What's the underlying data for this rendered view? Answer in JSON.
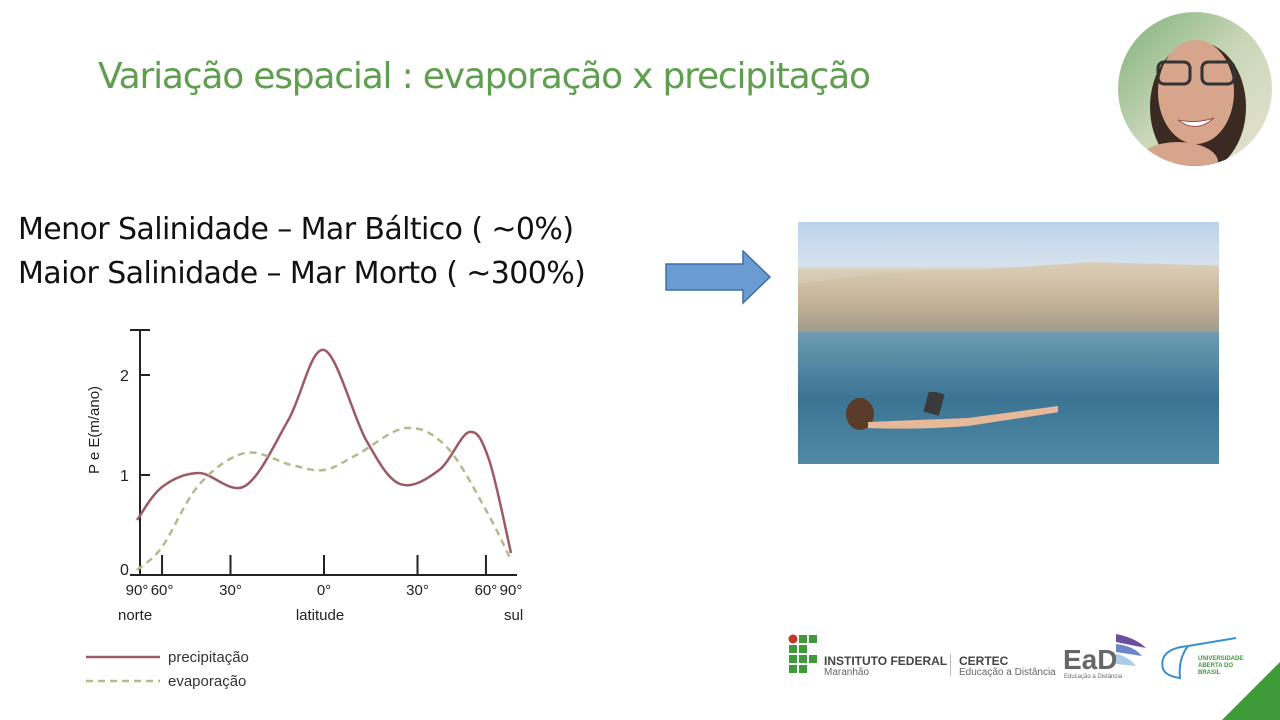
{
  "slide": {
    "title": "Variação espacial : evaporação x precipitação",
    "lines": [
      "Menor Salinidade – Mar Báltico  ( ~0%)",
      "Maior Salinidade – Mar Morto  ( ~300%)"
    ],
    "colors": {
      "title": "#5f9e4e",
      "arrow": "#6a9bd1",
      "corner": "#3f9a3a"
    }
  },
  "logos": {
    "ifma": "INSTITUTO FEDERAL",
    "ifma_sub": "Maranhão",
    "certec": "CERTEC",
    "certec_sub": "Educação a Distância",
    "ead": "EaD",
    "ead_sub": "Educação a Distância",
    "uab": "UNIVERSIDADE ABERTA DO BRASIL"
  },
  "chart_data": {
    "type": "line",
    "ylabel": "P e E(m/ano)",
    "xlabel": "latitude",
    "x_scale": "sine of latitude",
    "x_end_labels": {
      "left": "norte",
      "right": "sul"
    },
    "x_ticks": [
      {
        "value": 90,
        "label": "90°"
      },
      {
        "value": 60,
        "label": "60°"
      },
      {
        "value": 30,
        "label": "30°"
      },
      {
        "value": 0,
        "label": "0°"
      },
      {
        "value": -30,
        "label": "30°"
      },
      {
        "value": -60,
        "label": "60°"
      },
      {
        "value": -90,
        "label": "90°"
      }
    ],
    "y_ticks": [
      {
        "value": 0,
        "label": "0"
      },
      {
        "value": 1,
        "label": "1"
      },
      {
        "value": 2,
        "label": "2"
      }
    ],
    "ylim": [
      0,
      2.45
    ],
    "xlim": [
      90,
      -90
    ],
    "grid": false,
    "legend": "bottom-left",
    "series": [
      {
        "name": "precipitação",
        "color": "#9c5a66",
        "style": "solid",
        "x": [
          90,
          60,
          42,
          25,
          11,
          0,
          -13,
          -24,
          -38,
          -51,
          -62,
          -90
        ],
        "y": [
          0.55,
          0.88,
          1.02,
          0.89,
          1.55,
          2.25,
          1.35,
          0.91,
          1.05,
          1.43,
          1.15,
          0.22
        ]
      },
      {
        "name": "evaporação",
        "color": "#b7b88e",
        "style": "dashed",
        "x": [
          90,
          60,
          42,
          25,
          10,
          0,
          -10,
          -26,
          -41,
          -60,
          -90
        ],
        "y": [
          0.05,
          0.28,
          0.9,
          1.22,
          1.1,
          1.05,
          1.2,
          1.47,
          1.28,
          0.65,
          0.15
        ]
      }
    ]
  }
}
